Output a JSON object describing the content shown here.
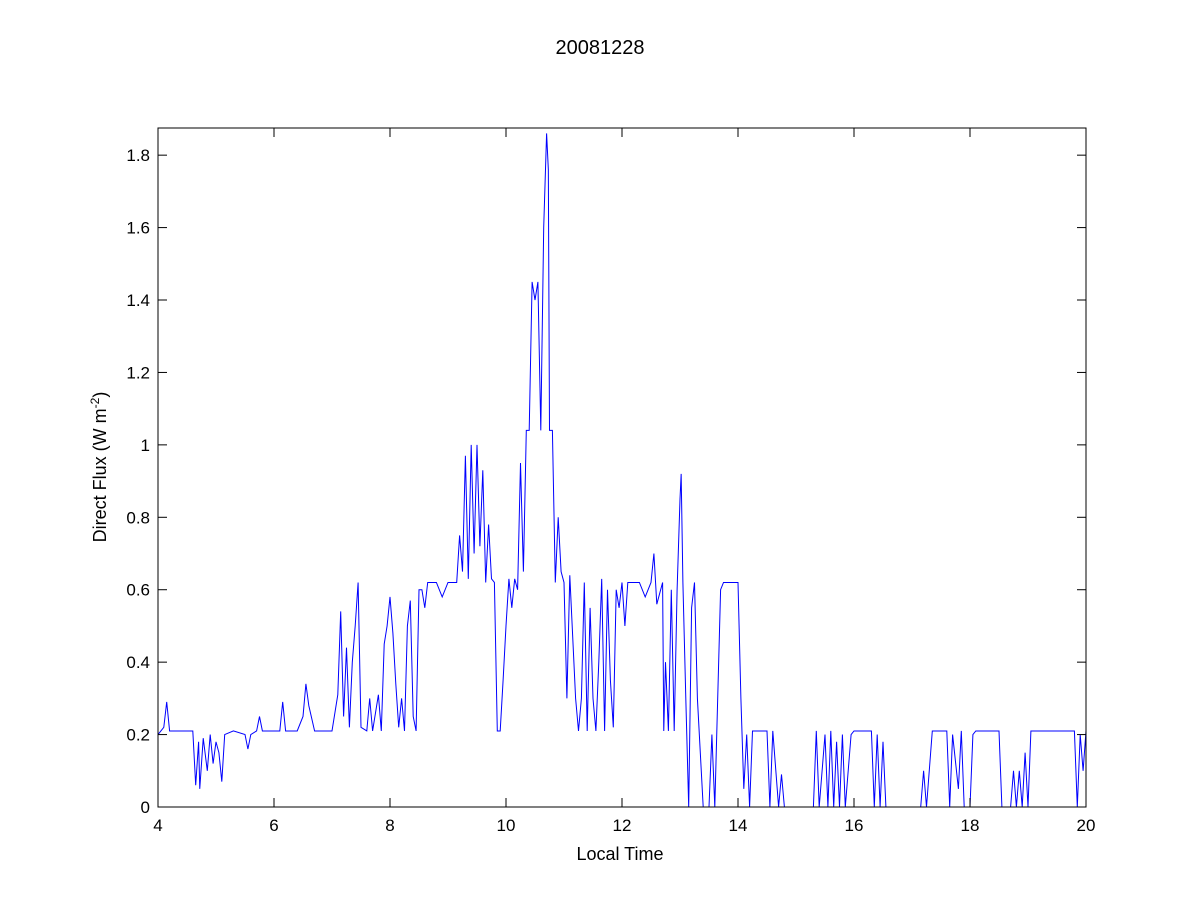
{
  "chart_data": {
    "type": "line",
    "title": "20081228",
    "xlabel": "Local Time",
    "ylabel": [
      "Direct Flux (W m",
      "-2",
      ")"
    ],
    "color": "#0000ff",
    "xlim": [
      4,
      20
    ],
    "xticks": [
      4,
      6,
      8,
      10,
      12,
      14,
      16,
      18,
      20
    ],
    "ylim": [
      0,
      1.875
    ],
    "yticks": [
      0,
      0.2,
      0.4,
      0.6,
      0.8,
      1,
      1.2,
      1.4,
      1.6,
      1.8
    ],
    "x": [
      4.0,
      4.1,
      4.15,
      4.2,
      4.5,
      4.6,
      4.65,
      4.7,
      4.72,
      4.78,
      4.85,
      4.9,
      4.95,
      5.0,
      5.05,
      5.1,
      5.15,
      5.3,
      5.5,
      5.55,
      5.6,
      5.7,
      5.75,
      5.8,
      6.1,
      6.15,
      6.2,
      6.4,
      6.5,
      6.55,
      6.6,
      6.7,
      7.0,
      7.1,
      7.15,
      7.2,
      7.25,
      7.3,
      7.35,
      7.4,
      7.45,
      7.5,
      7.6,
      7.65,
      7.7,
      7.8,
      7.85,
      7.9,
      7.95,
      8.0,
      8.05,
      8.1,
      8.15,
      8.2,
      8.25,
      8.3,
      8.35,
      8.4,
      8.45,
      8.5,
      8.55,
      8.6,
      8.65,
      8.8,
      8.9,
      9.0,
      9.15,
      9.2,
      9.25,
      9.3,
      9.35,
      9.4,
      9.45,
      9.5,
      9.55,
      9.6,
      9.65,
      9.7,
      9.75,
      9.8,
      9.85,
      9.9,
      9.95,
      10.0,
      10.05,
      10.1,
      10.15,
      10.2,
      10.25,
      10.3,
      10.35,
      10.4,
      10.45,
      10.5,
      10.55,
      10.6,
      10.65,
      10.7,
      10.73,
      10.75,
      10.8,
      10.85,
      10.9,
      10.95,
      11.0,
      11.05,
      11.1,
      11.2,
      11.25,
      11.3,
      11.35,
      11.4,
      11.45,
      11.5,
      11.55,
      11.6,
      11.65,
      11.7,
      11.75,
      11.8,
      11.85,
      11.9,
      11.95,
      12.0,
      12.05,
      12.1,
      12.3,
      12.4,
      12.5,
      12.55,
      12.6,
      12.7,
      12.72,
      12.75,
      12.8,
      12.85,
      12.9,
      12.95,
      13.0,
      13.02,
      13.05,
      13.1,
      13.15,
      13.2,
      13.25,
      13.3,
      13.35,
      13.4,
      13.5,
      13.55,
      13.6,
      13.7,
      13.75,
      14.0,
      14.05,
      14.1,
      14.15,
      14.2,
      14.25,
      14.5,
      14.55,
      14.6,
      14.7,
      14.75,
      14.8,
      15.3,
      15.35,
      15.4,
      15.5,
      15.55,
      15.6,
      15.65,
      15.7,
      15.75,
      15.8,
      15.85,
      15.95,
      16.0,
      16.3,
      16.35,
      16.4,
      16.45,
      16.5,
      16.55,
      17.0,
      17.15,
      17.2,
      17.25,
      17.35,
      17.6,
      17.65,
      17.7,
      17.8,
      17.85,
      17.9,
      18.0,
      18.05,
      18.1,
      18.5,
      18.55,
      18.7,
      18.75,
      18.8,
      18.85,
      18.9,
      18.95,
      19.0,
      19.05,
      19.8,
      19.85,
      19.9,
      19.95,
      20.0
    ],
    "values": [
      0.2,
      0.22,
      0.29,
      0.21,
      0.21,
      0.21,
      0.06,
      0.18,
      0.05,
      0.19,
      0.1,
      0.2,
      0.12,
      0.18,
      0.15,
      0.07,
      0.2,
      0.21,
      0.2,
      0.16,
      0.2,
      0.21,
      0.25,
      0.21,
      0.21,
      0.29,
      0.21,
      0.21,
      0.25,
      0.34,
      0.28,
      0.21,
      0.21,
      0.31,
      0.54,
      0.25,
      0.44,
      0.22,
      0.4,
      0.5,
      0.62,
      0.22,
      0.21,
      0.3,
      0.21,
      0.31,
      0.21,
      0.45,
      0.5,
      0.58,
      0.48,
      0.34,
      0.22,
      0.3,
      0.21,
      0.5,
      0.57,
      0.25,
      0.21,
      0.6,
      0.6,
      0.55,
      0.62,
      0.62,
      0.58,
      0.62,
      0.62,
      0.75,
      0.65,
      0.97,
      0.63,
      1.0,
      0.7,
      1.0,
      0.72,
      0.93,
      0.62,
      0.78,
      0.63,
      0.62,
      0.21,
      0.21,
      0.35,
      0.5,
      0.63,
      0.55,
      0.63,
      0.6,
      0.95,
      0.65,
      1.04,
      1.04,
      1.45,
      1.4,
      1.45,
      1.04,
      1.6,
      1.86,
      1.76,
      1.04,
      1.04,
      0.62,
      0.8,
      0.65,
      0.62,
      0.3,
      0.64,
      0.3,
      0.21,
      0.3,
      0.62,
      0.21,
      0.55,
      0.3,
      0.21,
      0.4,
      0.63,
      0.21,
      0.6,
      0.35,
      0.22,
      0.6,
      0.55,
      0.62,
      0.5,
      0.62,
      0.62,
      0.58,
      0.62,
      0.7,
      0.56,
      0.62,
      0.21,
      0.4,
      0.21,
      0.6,
      0.21,
      0.6,
      0.85,
      0.92,
      0.62,
      0.3,
      0.0,
      0.55,
      0.62,
      0.3,
      0.15,
      0.0,
      0.0,
      0.2,
      0.0,
      0.6,
      0.62,
      0.62,
      0.3,
      0.05,
      0.2,
      0.0,
      0.21,
      0.21,
      0.0,
      0.21,
      0.0,
      0.09,
      0.0,
      0.0,
      0.21,
      0.0,
      0.2,
      0.0,
      0.21,
      0.0,
      0.18,
      0.0,
      0.2,
      0.0,
      0.2,
      0.21,
      0.21,
      0.0,
      0.2,
      0.0,
      0.18,
      0.0,
      0.0,
      0.0,
      0.1,
      0.0,
      0.21,
      0.21,
      0.0,
      0.2,
      0.05,
      0.21,
      0.0,
      0.0,
      0.2,
      0.21,
      0.21,
      0.0,
      0.0,
      0.1,
      0.0,
      0.1,
      0.0,
      0.15,
      0.0,
      0.21,
      0.21,
      0.0,
      0.2,
      0.1,
      0.21
    ]
  }
}
